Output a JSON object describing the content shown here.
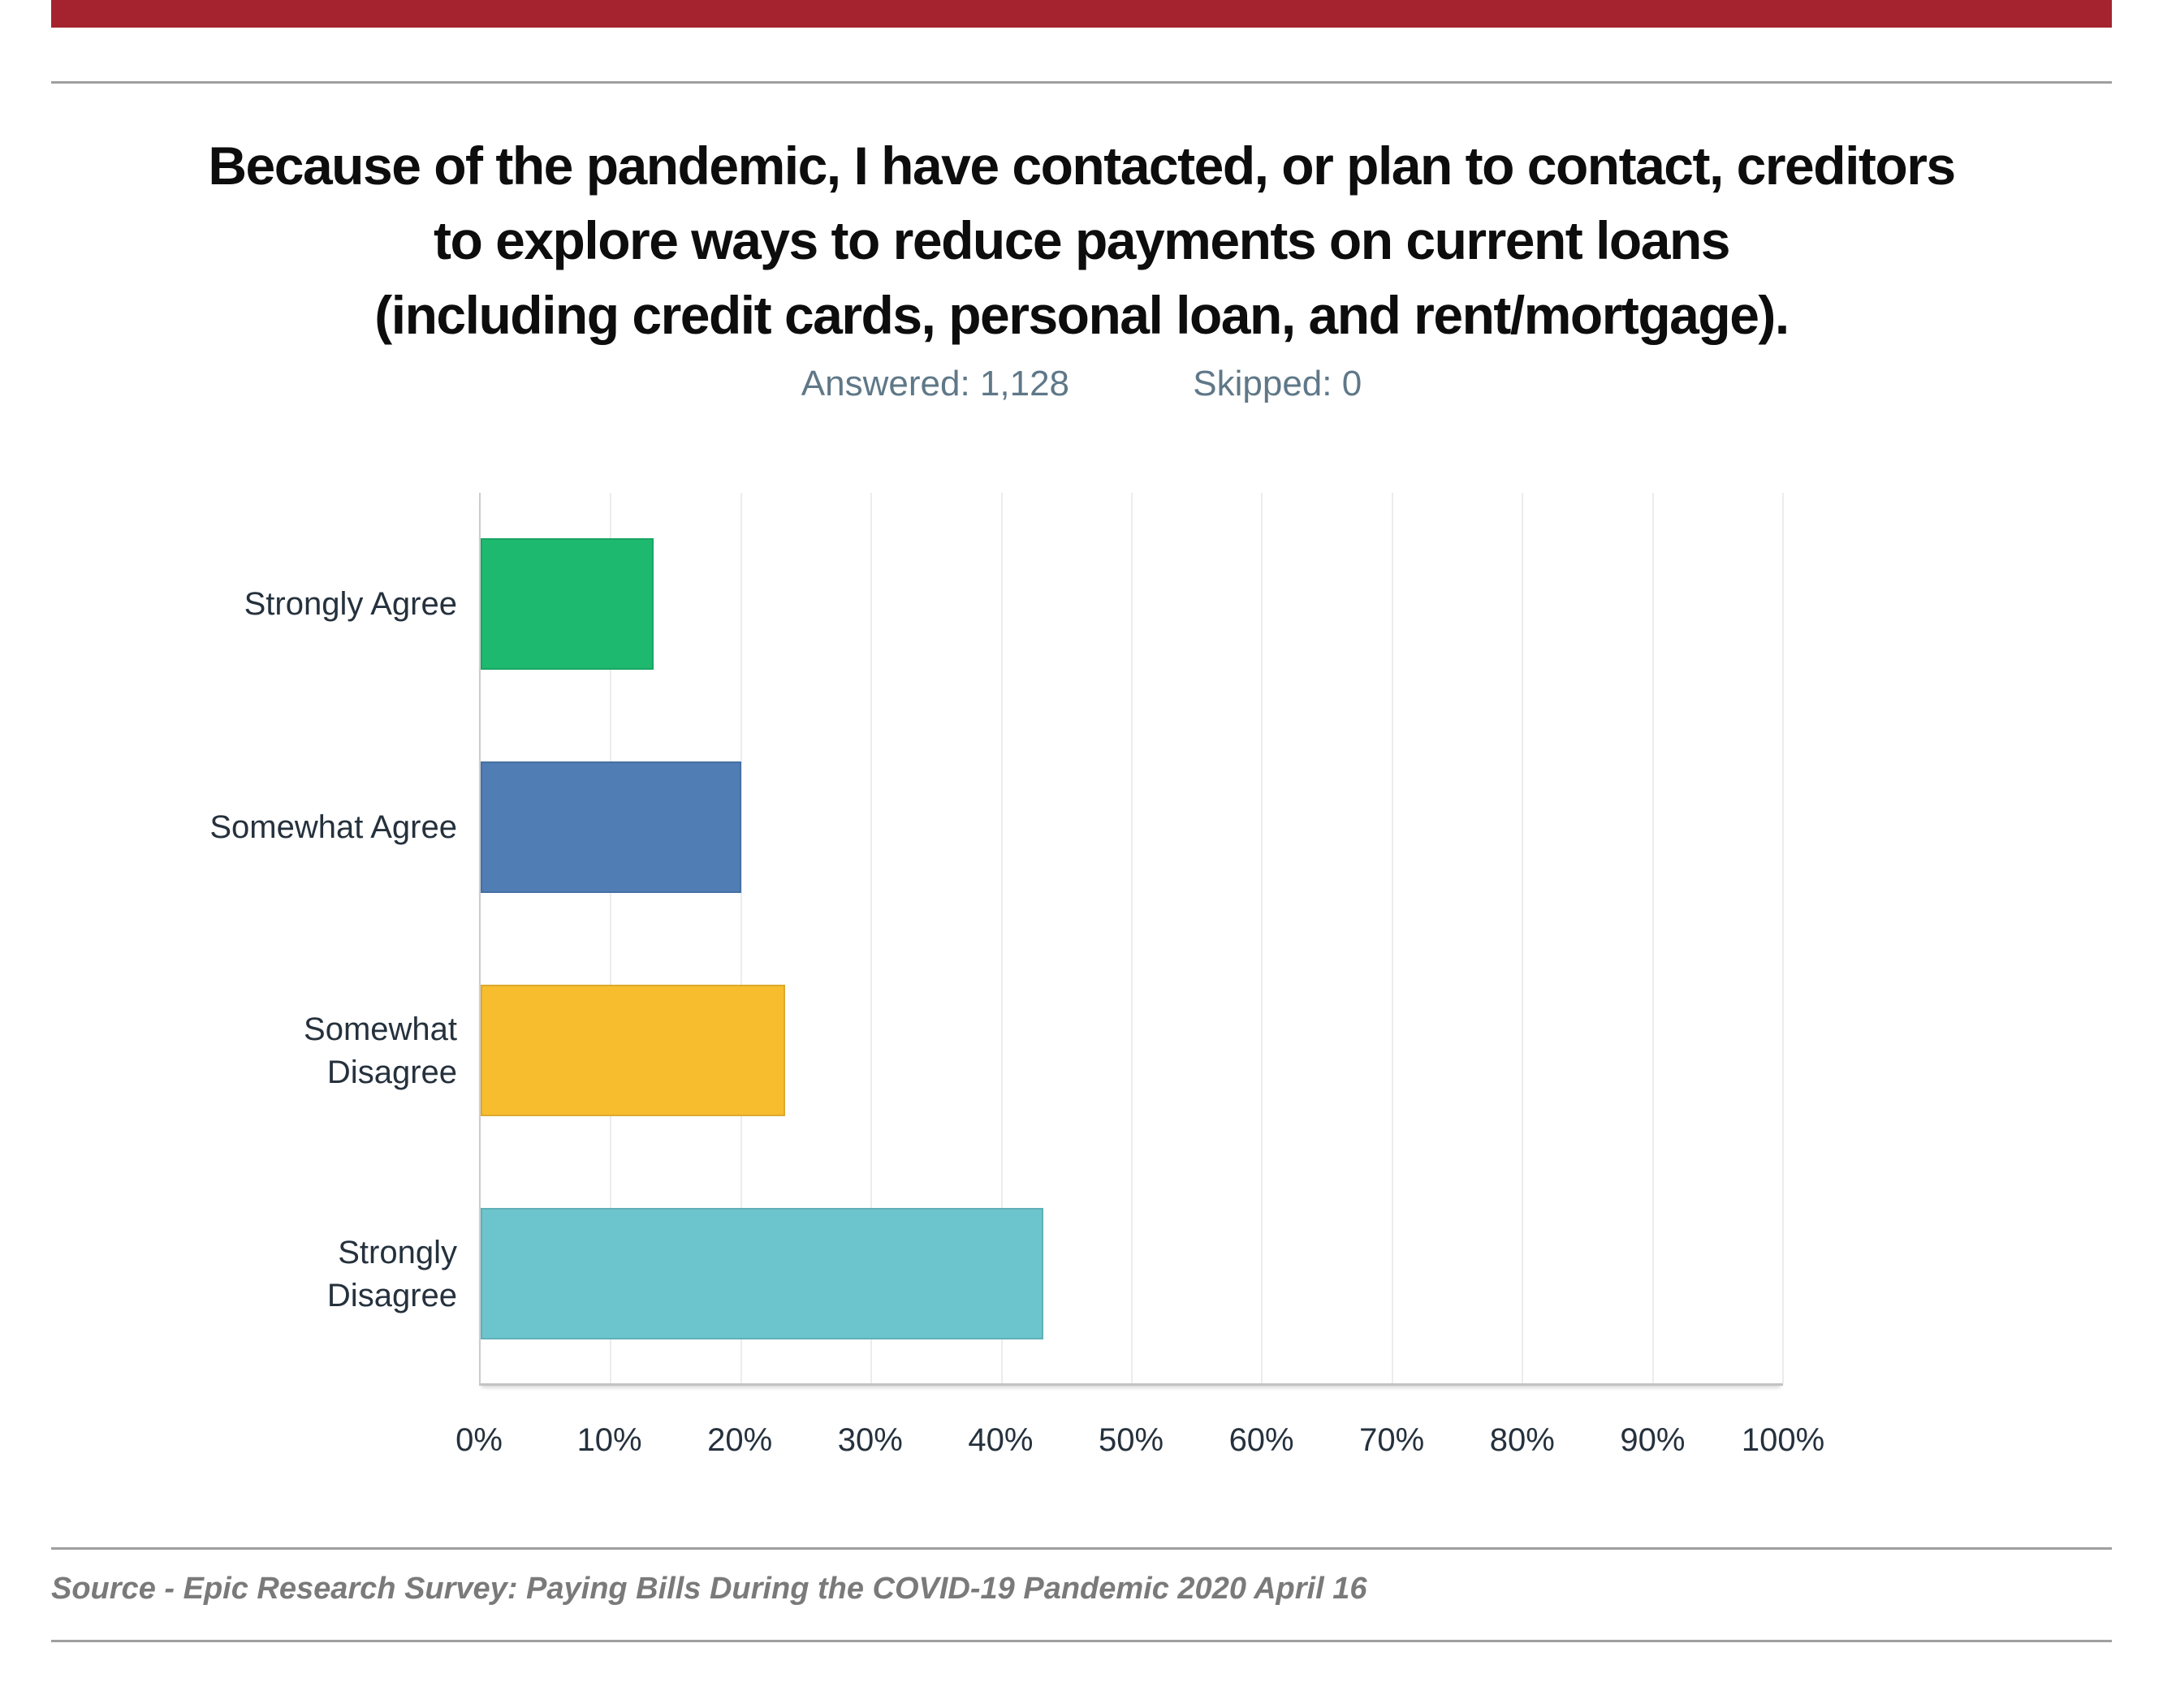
{
  "slide": {
    "background": "#ffffff",
    "accent_bar_color": "#a5232e",
    "divider_color": "#9f9f9f"
  },
  "header": {
    "title_lines": [
      "Because of the pandemic, I have contacted, or plan to contact, creditors",
      "to explore ways to reduce payments on current loans",
      "(including credit cards, personal loan, and rent/mortgage)."
    ],
    "answered": "Answered: 1,128",
    "skipped": "Skipped: 0"
  },
  "chart_data": {
    "type": "bar",
    "orientation": "horizontal",
    "title": "Because of the pandemic, I have contacted, or plan to contact, creditors to explore ways to reduce payments on current loans (including credit cards, personal loan, and rent/mortgage).",
    "answered": 1128,
    "skipped": 0,
    "categories": [
      "Strongly Agree",
      "Somewhat Agree",
      "Somewhat Disagree",
      "Strongly Disagree"
    ],
    "category_display_lines": [
      [
        "Strongly Agree"
      ],
      [
        "Somewhat Agree"
      ],
      [
        "Somewhat",
        "Disagree"
      ],
      [
        "Strongly",
        "Disagree"
      ]
    ],
    "values_percent": [
      13.3,
      20.0,
      23.4,
      43.2
    ],
    "bar_colors": [
      "#1db96f",
      "#4f7db4",
      "#f7bd2f",
      "#6cc5cd"
    ],
    "x_tick_labels": [
      "0%",
      "10%",
      "20%",
      "30%",
      "40%",
      "50%",
      "60%",
      "70%",
      "80%",
      "90%",
      "100%"
    ],
    "xlabel": "",
    "ylabel": "",
    "xlim": [
      0,
      100
    ],
    "grid": "vertical-light-gray",
    "legend": "none"
  },
  "footer": {
    "source_text": "Source - Epic Research Survey: Paying Bills During the COVID-19 Pandemic 2020 April 16"
  }
}
